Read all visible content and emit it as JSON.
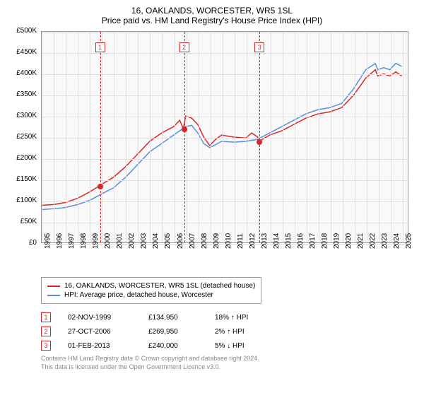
{
  "title": "16, OAKLANDS, WORCESTER, WR5 1SL",
  "subtitle": "Price paid vs. HM Land Registry's House Price Index (HPI)",
  "chart": {
    "type": "line",
    "plot_bg": "#f9f9f9",
    "grid_color": "#e0e0e0",
    "border_color": "#999999",
    "x_min": 1995,
    "x_max": 2025.5,
    "y_min": 0,
    "y_max": 500000,
    "y_ticks": [
      0,
      50000,
      100000,
      150000,
      200000,
      250000,
      300000,
      350000,
      400000,
      450000,
      500000
    ],
    "y_tick_labels": [
      "£0",
      "£50K",
      "£100K",
      "£150K",
      "£200K",
      "£250K",
      "£300K",
      "£350K",
      "£400K",
      "£450K",
      "£500K"
    ],
    "x_ticks": [
      1995,
      1996,
      1997,
      1998,
      1999,
      2000,
      2001,
      2002,
      2003,
      2004,
      2005,
      2006,
      2007,
      2008,
      2009,
      2010,
      2011,
      2012,
      2013,
      2014,
      2015,
      2016,
      2017,
      2018,
      2019,
      2020,
      2021,
      2022,
      2023,
      2024,
      2025
    ],
    "x_tick_labels": [
      "1995",
      "1996",
      "1997",
      "1998",
      "1999",
      "2000",
      "2001",
      "2002",
      "2003",
      "2004",
      "2005",
      "2006",
      "2007",
      "2008",
      "2009",
      "2010",
      "2011",
      "2012",
      "2013",
      "2014",
      "2015",
      "2016",
      "2017",
      "2018",
      "2019",
      "2020",
      "2021",
      "2022",
      "2023",
      "2024",
      "2025"
    ],
    "series": [
      {
        "name": "16, OAKLANDS, WORCESTER, WR5 1SL (detached house)",
        "color": "#d62728",
        "line_width": 1.5,
        "points": [
          [
            1995,
            88000
          ],
          [
            1996,
            90000
          ],
          [
            1997,
            95000
          ],
          [
            1998,
            105000
          ],
          [
            1999,
            120000
          ],
          [
            1999.84,
            134950
          ],
          [
            2000,
            138000
          ],
          [
            2001,
            155000
          ],
          [
            2002,
            180000
          ],
          [
            2003,
            210000
          ],
          [
            2004,
            240000
          ],
          [
            2005,
            260000
          ],
          [
            2006,
            275000
          ],
          [
            2006.5,
            290000
          ],
          [
            2006.8,
            269950
          ],
          [
            2007,
            300000
          ],
          [
            2007.5,
            295000
          ],
          [
            2008,
            280000
          ],
          [
            2008.5,
            250000
          ],
          [
            2009,
            230000
          ],
          [
            2009.5,
            245000
          ],
          [
            2010,
            255000
          ],
          [
            2011,
            250000
          ],
          [
            2012,
            248000
          ],
          [
            2012.5,
            260000
          ],
          [
            2013,
            250000
          ],
          [
            2013.1,
            240000
          ],
          [
            2014,
            255000
          ],
          [
            2015,
            265000
          ],
          [
            2016,
            280000
          ],
          [
            2017,
            295000
          ],
          [
            2018,
            305000
          ],
          [
            2019,
            310000
          ],
          [
            2020,
            320000
          ],
          [
            2021,
            350000
          ],
          [
            2022,
            390000
          ],
          [
            2022.8,
            410000
          ],
          [
            2023,
            395000
          ],
          [
            2023.5,
            400000
          ],
          [
            2024,
            395000
          ],
          [
            2024.5,
            405000
          ],
          [
            2025,
            395000
          ]
        ]
      },
      {
        "name": "HPI: Average price, detached house, Worcester",
        "color": "#5a8fd6",
        "line_width": 1.5,
        "points": [
          [
            1995,
            78000
          ],
          [
            1996,
            80000
          ],
          [
            1997,
            83000
          ],
          [
            1998,
            90000
          ],
          [
            1999,
            100000
          ],
          [
            2000,
            115000
          ],
          [
            2001,
            130000
          ],
          [
            2002,
            155000
          ],
          [
            2003,
            185000
          ],
          [
            2004,
            215000
          ],
          [
            2005,
            235000
          ],
          [
            2006,
            255000
          ],
          [
            2007,
            275000
          ],
          [
            2007.5,
            278000
          ],
          [
            2008,
            260000
          ],
          [
            2008.5,
            235000
          ],
          [
            2009,
            225000
          ],
          [
            2010,
            240000
          ],
          [
            2011,
            238000
          ],
          [
            2012,
            240000
          ],
          [
            2013,
            245000
          ],
          [
            2014,
            260000
          ],
          [
            2015,
            275000
          ],
          [
            2016,
            290000
          ],
          [
            2017,
            305000
          ],
          [
            2018,
            315000
          ],
          [
            2019,
            320000
          ],
          [
            2020,
            330000
          ],
          [
            2021,
            365000
          ],
          [
            2022,
            410000
          ],
          [
            2022.8,
            425000
          ],
          [
            2023,
            410000
          ],
          [
            2023.5,
            415000
          ],
          [
            2024,
            410000
          ],
          [
            2024.5,
            425000
          ],
          [
            2025,
            418000
          ]
        ]
      }
    ],
    "vlines": [
      {
        "x": 1999.84,
        "color": "#d62728"
      },
      {
        "x": 2006.82,
        "color": "#d62728"
      },
      {
        "x": 2013.08,
        "color": "#d62728"
      }
    ],
    "markers": [
      {
        "num": "1",
        "x": 1999.84,
        "y_top": 15,
        "border": "#d62728",
        "text_color": "#d62728",
        "dot_y": 134950
      },
      {
        "num": "2",
        "x": 2006.82,
        "y_top": 15,
        "border": "#d62728",
        "text_color": "#d62728",
        "dot_y": 269950
      },
      {
        "num": "3",
        "x": 2013.08,
        "y_top": 15,
        "border": "#d62728",
        "text_color": "#d62728",
        "dot_y": 240000
      }
    ]
  },
  "legend": {
    "items": [
      {
        "color": "#d62728",
        "label": "16, OAKLANDS, WORCESTER, WR5 1SL (detached house)"
      },
      {
        "color": "#5a8fd6",
        "label": "HPI: Average price, detached house, Worcester"
      }
    ]
  },
  "transactions": [
    {
      "num": "1",
      "border": "#d62728",
      "text_color": "#d62728",
      "date": "02-NOV-1999",
      "price": "£134,950",
      "diff": "18% ↑ HPI"
    },
    {
      "num": "2",
      "border": "#d62728",
      "text_color": "#d62728",
      "date": "27-OCT-2006",
      "price": "£269,950",
      "diff": "2% ↑ HPI"
    },
    {
      "num": "3",
      "border": "#d62728",
      "text_color": "#d62728",
      "date": "01-FEB-2013",
      "price": "£240,000",
      "diff": "5% ↓ HPI"
    }
  ],
  "footer_line1": "Contains HM Land Registry data © Crown copyright and database right 2024.",
  "footer_line2": "This data is licensed under the Open Government Licence v3.0."
}
